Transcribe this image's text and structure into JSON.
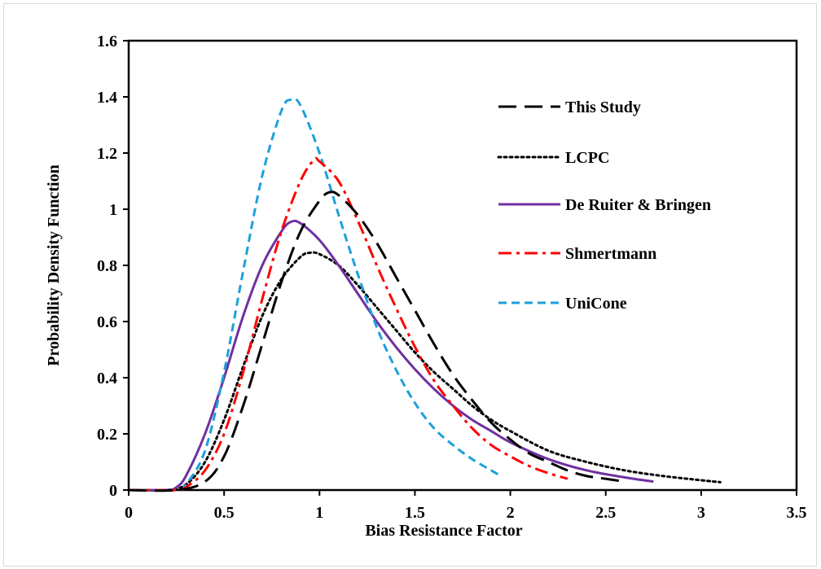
{
  "chart_data": {
    "type": "line",
    "xlabel": "Bias Resistance Factor",
    "ylabel": "Probability  Density  Function",
    "xlim": [
      0,
      3.5
    ],
    "ylim": [
      0,
      1.6
    ],
    "x_ticks": [
      "0",
      "0.5",
      "1",
      "1.5",
      "2",
      "2.5",
      "3",
      "3.5"
    ],
    "y_ticks": [
      "0",
      "0.2",
      "0.4",
      "0.6",
      "0.8",
      "1",
      "1.2",
      "1.4",
      "1.6"
    ],
    "grid": false,
    "legend_position": "top-right",
    "series": [
      {
        "name": "This Study",
        "color": "#000000",
        "dash": "long-dash",
        "points": [
          [
            0,
            0
          ],
          [
            0.25,
            0
          ],
          [
            0.4,
            0.03
          ],
          [
            0.5,
            0.12
          ],
          [
            0.6,
            0.3
          ],
          [
            0.7,
            0.52
          ],
          [
            0.8,
            0.74
          ],
          [
            0.9,
            0.92
          ],
          [
            1.0,
            1.03
          ],
          [
            1.05,
            1.06
          ],
          [
            1.1,
            1.05
          ],
          [
            1.2,
            0.98
          ],
          [
            1.3,
            0.88
          ],
          [
            1.4,
            0.76
          ],
          [
            1.5,
            0.64
          ],
          [
            1.6,
            0.52
          ],
          [
            1.7,
            0.41
          ],
          [
            1.8,
            0.32
          ],
          [
            1.9,
            0.24
          ],
          [
            2.0,
            0.18
          ],
          [
            2.1,
            0.13
          ],
          [
            2.2,
            0.1
          ],
          [
            2.3,
            0.07
          ],
          [
            2.4,
            0.05
          ],
          [
            2.5,
            0.04
          ],
          [
            2.6,
            0.03
          ]
        ]
      },
      {
        "name": "LCPC",
        "color": "#000000",
        "dash": "dotted",
        "points": [
          [
            0,
            0
          ],
          [
            0.2,
            0
          ],
          [
            0.3,
            0.02
          ],
          [
            0.4,
            0.1
          ],
          [
            0.5,
            0.25
          ],
          [
            0.6,
            0.44
          ],
          [
            0.7,
            0.62
          ],
          [
            0.8,
            0.75
          ],
          [
            0.9,
            0.83
          ],
          [
            0.95,
            0.845
          ],
          [
            1.0,
            0.84
          ],
          [
            1.1,
            0.8
          ],
          [
            1.2,
            0.73
          ],
          [
            1.3,
            0.65
          ],
          [
            1.4,
            0.57
          ],
          [
            1.5,
            0.49
          ],
          [
            1.6,
            0.42
          ],
          [
            1.7,
            0.36
          ],
          [
            1.8,
            0.3
          ],
          [
            1.9,
            0.25
          ],
          [
            2.0,
            0.21
          ],
          [
            2.2,
            0.14
          ],
          [
            2.4,
            0.1
          ],
          [
            2.6,
            0.07
          ],
          [
            2.8,
            0.05
          ],
          [
            3.0,
            0.035
          ],
          [
            3.1,
            0.028
          ]
        ]
      },
      {
        "name": "De Ruiter & Bringen",
        "color": "#7030a0",
        "dash": "solid",
        "points": [
          [
            0,
            0
          ],
          [
            0.2,
            0
          ],
          [
            0.25,
            0.01
          ],
          [
            0.3,
            0.05
          ],
          [
            0.4,
            0.2
          ],
          [
            0.5,
            0.4
          ],
          [
            0.6,
            0.62
          ],
          [
            0.7,
            0.8
          ],
          [
            0.8,
            0.92
          ],
          [
            0.85,
            0.955
          ],
          [
            0.9,
            0.95
          ],
          [
            1.0,
            0.89
          ],
          [
            1.1,
            0.8
          ],
          [
            1.2,
            0.7
          ],
          [
            1.3,
            0.6
          ],
          [
            1.4,
            0.51
          ],
          [
            1.5,
            0.43
          ],
          [
            1.6,
            0.36
          ],
          [
            1.7,
            0.3
          ],
          [
            1.8,
            0.25
          ],
          [
            1.9,
            0.21
          ],
          [
            2.0,
            0.17
          ],
          [
            2.2,
            0.11
          ],
          [
            2.4,
            0.07
          ],
          [
            2.6,
            0.045
          ],
          [
            2.75,
            0.03
          ]
        ]
      },
      {
        "name": "Shmertmann",
        "color": "#ff0000",
        "dash": "dash-dot",
        "points": [
          [
            0,
            0
          ],
          [
            0.25,
            0
          ],
          [
            0.3,
            0.01
          ],
          [
            0.4,
            0.07
          ],
          [
            0.5,
            0.2
          ],
          [
            0.6,
            0.42
          ],
          [
            0.7,
            0.68
          ],
          [
            0.8,
            0.92
          ],
          [
            0.9,
            1.1
          ],
          [
            0.97,
            1.175
          ],
          [
            1.0,
            1.17
          ],
          [
            1.1,
            1.1
          ],
          [
            1.2,
            0.96
          ],
          [
            1.3,
            0.8
          ],
          [
            1.4,
            0.65
          ],
          [
            1.5,
            0.51
          ],
          [
            1.6,
            0.39
          ],
          [
            1.7,
            0.3
          ],
          [
            1.8,
            0.22
          ],
          [
            1.9,
            0.16
          ],
          [
            2.0,
            0.12
          ],
          [
            2.1,
            0.085
          ],
          [
            2.2,
            0.06
          ],
          [
            2.3,
            0.04
          ]
        ]
      },
      {
        "name": "UniCone",
        "color": "#1ca0dc",
        "dash": "dashed",
        "points": [
          [
            0,
            0
          ],
          [
            0.25,
            0
          ],
          [
            0.3,
            0.02
          ],
          [
            0.4,
            0.14
          ],
          [
            0.5,
            0.42
          ],
          [
            0.6,
            0.78
          ],
          [
            0.7,
            1.12
          ],
          [
            0.8,
            1.35
          ],
          [
            0.85,
            1.39
          ],
          [
            0.9,
            1.37
          ],
          [
            1.0,
            1.2
          ],
          [
            1.1,
            0.98
          ],
          [
            1.2,
            0.77
          ],
          [
            1.3,
            0.58
          ],
          [
            1.4,
            0.43
          ],
          [
            1.5,
            0.31
          ],
          [
            1.6,
            0.22
          ],
          [
            1.7,
            0.16
          ],
          [
            1.8,
            0.11
          ],
          [
            1.9,
            0.07
          ],
          [
            1.95,
            0.05
          ]
        ]
      }
    ]
  }
}
